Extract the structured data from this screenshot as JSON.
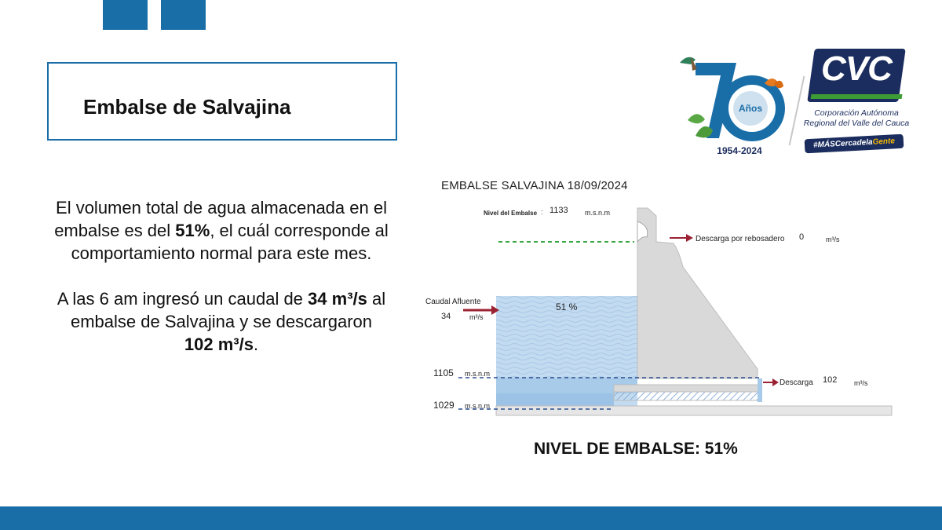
{
  "header": {
    "title": "Embalse de Salvajina"
  },
  "body": {
    "p1_a": "El volumen total de agua almacenada en el embalse es del ",
    "p1_pct": "51%",
    "p1_b": ", el cuál corresponde al comportamiento normal para este mes.",
    "p2_a": "A las 6 am ingresó un caudal de ",
    "p2_in_num": "34",
    "p2_in_unit": "m³/s",
    "p2_b": " al embalse de Salvajina y se descargaron",
    "p2_out": "102 m³/s",
    "p2_end": "."
  },
  "logo": {
    "anos": "Años",
    "years": "1954-2024",
    "cvc": "CVC",
    "cvc_sub_1": "Corporación Autónoma",
    "cvc_sub_2": "Regional del Valle del Cauca",
    "hashtag_a": "#MÁSCercadela",
    "hashtag_b": "Gente"
  },
  "diagram": {
    "title": "EMBALSE SALVAJINA 18/09/2024",
    "nivel_label": "Nivel del Embalse",
    "nivel_colon": ":",
    "nivel_value": "1133",
    "nivel_unit": "m.s.n.m",
    "rebosadero_label": "Descarga por rebosadero",
    "rebosadero_value": "0",
    "rebosadero_unit": "m³/s",
    "caudal_label": "Caudal Afluente",
    "caudal_value": "34",
    "caudal_unit": "m³/s",
    "fill_label": "51 %",
    "fill_fraction": 0.51,
    "level_1105": "1105",
    "level_1029": "1029",
    "msnm": "m.s.n.m",
    "descarga_label": "Descarga",
    "descarga_value": "102",
    "descarga_unit": "m³/s"
  },
  "footer": {
    "nivel": "NIVEL DE EMBALSE: 51%"
  },
  "colors": {
    "brand_blue": "#1a6ea8",
    "water_light": "#bcd6ee",
    "water_mid": "#8fbbe4",
    "dam_grey": "#d9d9d9",
    "arrow_red": "#9b2232",
    "dashed_green": "#3aa845",
    "dashed_blue": "#2a4d8f"
  }
}
